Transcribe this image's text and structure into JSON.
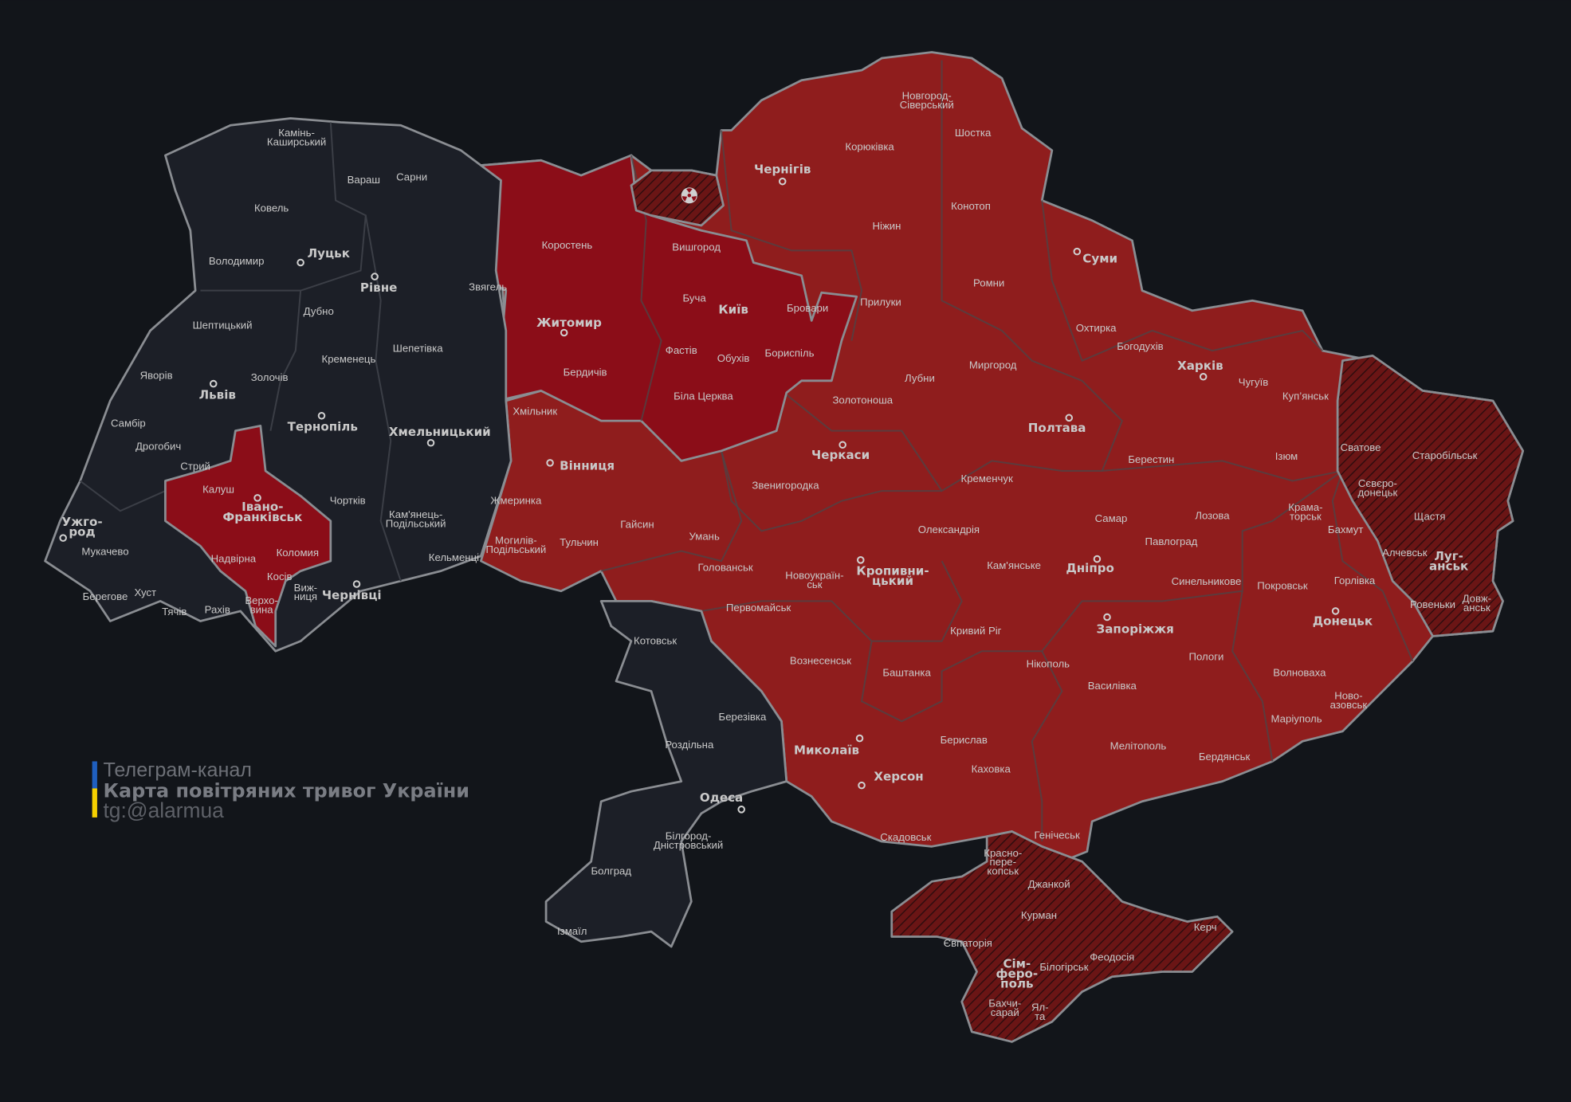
{
  "legend": {
    "line1": "Телеграм-канал",
    "line2": "Карта повітряних тривог України",
    "line3": "tg:@alarmua",
    "flag_colors": [
      "#1f5fbf",
      "#f5d000"
    ]
  },
  "status_colors": {
    "background": "#12151a",
    "no_alert": "#1c1f27",
    "alert": "#8f1d1d",
    "alert_strong": "#8b0d18",
    "occupied_hatched": "#6a1515"
  },
  "regions": {
    "no_alert": [
      "Волинська",
      "Рівненська",
      "Львівська",
      "Тернопільська",
      "Хмельницька",
      "Закарпатська",
      "Чернівецька",
      "Одеська"
    ],
    "alert_strong": [
      "Житомирська",
      "Київська",
      "Івано-Франківська"
    ],
    "alert": [
      "Вінницька",
      "Черкаська",
      "Чернігівська",
      "Сумська",
      "Полтавська",
      "Харківська",
      "Кіровоградська",
      "Миколаївська",
      "Херсонська",
      "Дніпропетровська",
      "Запорізька",
      "Донецька"
    ],
    "occupied_hatched": [
      "Луганська",
      "АР Крим",
      "Чорнобильська зона"
    ]
  },
  "icons": {
    "exclusion_zone": "radiation-icon"
  },
  "oblast_centers": [
    "Луцьк",
    "Рівне",
    "Львів",
    "Тернопіль",
    "Хмельницький",
    "Івано-\nФранківськ",
    "Ужго-\nрод",
    "Чернівці",
    "Житомир",
    "Київ",
    "Чернігів",
    "Суми",
    "Харків",
    "Полтава",
    "Черкаси",
    "Вінниця",
    "Кропивни-\nцький",
    "Дніпро",
    "Запоріжжя",
    "Донецьк",
    "Луг-\nанськ",
    "Миколаїв",
    "Херсон",
    "Одеса",
    "Сім-\nферо-\nполь"
  ],
  "districts": [
    "Камінь-\nКаширський",
    "Вараш",
    "Сарни",
    "Ковель",
    "Володимир",
    "Дубно",
    "Шептицький",
    "Кременець",
    "Шепетівка",
    "Яворів",
    "Золочів",
    "Самбір",
    "Дрогобич",
    "Стрий",
    "Калуш",
    "Чортків",
    "Кам'янець-\nПодільський",
    "Мукачево",
    "Надвірна",
    "Коломия",
    "Кельменці",
    "Косів",
    "Виж-\nниця",
    "Берегове",
    "Хуст",
    "Тячів",
    "Рахів",
    "Верхо-\nвина",
    "Коростень",
    "Звягель",
    "Бердичів",
    "Вишгород",
    "Буча",
    "Бровари",
    "Фастів",
    "Обухів",
    "Бориспіль",
    "Біла Церква",
    "Хмільник",
    "Жмеринка",
    "Могилів-\nПодільський",
    "Тульчин",
    "Гайсин",
    "Умань",
    "Звенигородка",
    "Новгород-\nСіверський",
    "Шостка",
    "Корюківка",
    "Конотоп",
    "Ніжин",
    "Ромни",
    "Прилуки",
    "Охтирка",
    "Богодухів",
    "Лубни",
    "Миргород",
    "Золотоноша",
    "Кременчук",
    "Чугуїв",
    "Куп’янськ",
    "Берестин",
    "Ізюм",
    "Сватове",
    "Старобільськ",
    "Сєвєро-\nдонецьк",
    "Щастя",
    "Крама-\nторськ",
    "Бахмут",
    "Алчевськ",
    "Самар",
    "Лозова",
    "Павлоград",
    "Олександрія",
    "Кам'янське",
    "Синельникове",
    "Покровськ",
    "Горлівка",
    "Ровеньки",
    "Довж-\nанськ",
    "Голованськ",
    "Новоукраїн-\nськ",
    "Первомайськ",
    "Котовськ",
    "Кривий Ріг",
    "Нікополь",
    "Пологи",
    "Вознесенськ",
    "Баштанка",
    "Волноваха",
    "Василівка",
    "Ново-\nазовськ",
    "Березівка",
    "Маріуполь",
    "Роздільна",
    "Берислав",
    "Мелітополь",
    "Бердянськ",
    "Каховка",
    "Скадовськ",
    "Генічеськ",
    "Білгород-\nДністровський",
    "Красно-\nпере-\nкопськ",
    "Болград",
    "Джанкой",
    "Курман",
    "Ізмаїл",
    "Євпаторія",
    "Керч",
    "Феодосія",
    "Білогірськ",
    "Бахчи-\nсарай",
    "Ял-\nта"
  ]
}
